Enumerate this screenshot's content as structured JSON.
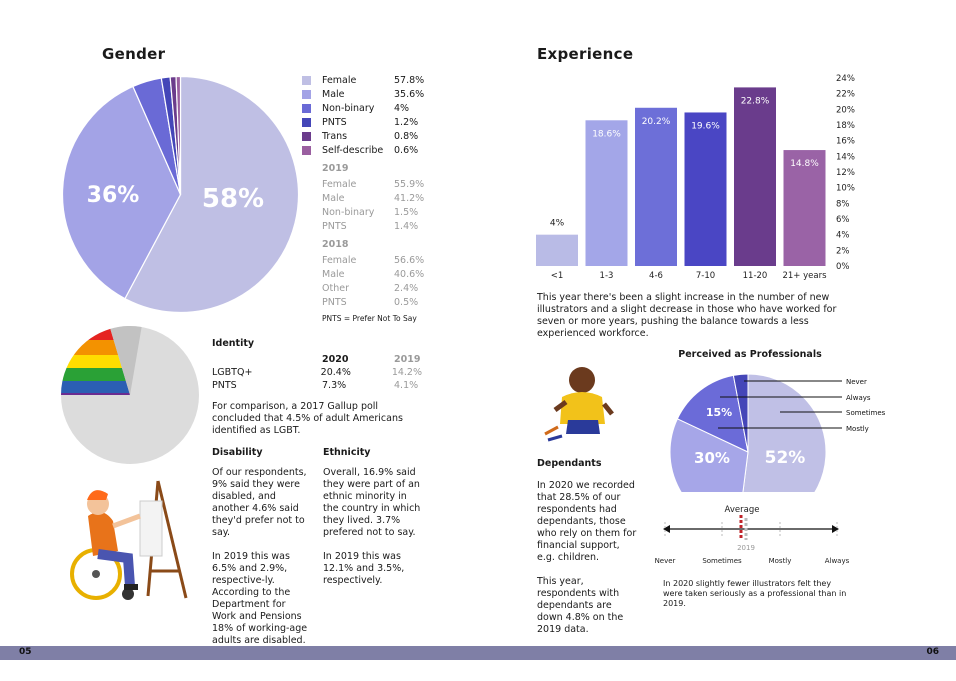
{
  "gender": {
    "title": "Gender",
    "pie_labels": {
      "big": "58%",
      "second": "36%"
    },
    "legend_2020": [
      {
        "label": "Female",
        "value": "57.8%",
        "color": "#bfbfe4"
      },
      {
        "label": "Male",
        "value": "35.6%",
        "color": "#a3a3e6"
      },
      {
        "label": "Non-binary",
        "value": "4%",
        "color": "#6a6ad6"
      },
      {
        "label": "PNTS",
        "value": "1.2%",
        "color": "#4446b8"
      },
      {
        "label": "Trans",
        "value": "0.8%",
        "color": "#6b3c8c"
      },
      {
        "label": "Self-describe",
        "value": "0.6%",
        "color": "#9a5fa0"
      }
    ],
    "y2019": {
      "year": "2019",
      "rows": [
        {
          "label": "Female",
          "value": "55.9%"
        },
        {
          "label": "Male",
          "value": "41.2%"
        },
        {
          "label": "Non-binary",
          "value": "1.5%"
        },
        {
          "label": "PNTS",
          "value": "1.4%"
        }
      ]
    },
    "y2018": {
      "year": "2018",
      "rows": [
        {
          "label": "Female",
          "value": "56.6%"
        },
        {
          "label": "Male",
          "value": "40.6%"
        },
        {
          "label": "Other",
          "value": "2.4%"
        },
        {
          "label": "PNTS",
          "value": "0.5%"
        }
      ]
    },
    "footnote": "PNTS = Prefer Not To Say"
  },
  "identity": {
    "title": "Identity",
    "col_2020": "2020",
    "col_2019": "2019",
    "rows": [
      {
        "label": "LGBTQ+",
        "v2020": "20.4%",
        "v2019": "14.2%"
      },
      {
        "label": "PNTS",
        "v2020": "7.3%",
        "v2019": "4.1%"
      }
    ],
    "note": "For comparison, a 2017 Gallup poll concluded that 4.5% of adult Americans identified as LGBT."
  },
  "disability": {
    "title": "Disability",
    "p1": "Of our respondents, 9% said they were disabled, and another 4.6% said they'd prefer not to say.",
    "p2": "In 2019 this was 6.5% and 2.9%, respective-ly. According to the Department for Work and Pensions 18% of working-age adults are disabled."
  },
  "ethnicity": {
    "title": "Ethnicity",
    "p1": "Overall, 16.9% said they were part of an ethnic minority in the country in which they lived. 3.7% prefered not to say.",
    "p2": "In 2019 this was 12.1% and 3.5%, respectively."
  },
  "experience": {
    "title": "Experience",
    "caption": "This year there's been a slight increase in the number of new illustrators and a slight decrease in those who have worked for seven or more years, pushing the balance towards a less experienced workforce."
  },
  "chart_data": [
    {
      "type": "bar",
      "title": "Experience",
      "categories": [
        "<1",
        "1-3",
        "4-6",
        "7-10",
        "11-20",
        "21+ years"
      ],
      "values": [
        4,
        18.6,
        20.2,
        19.6,
        22.8,
        14.8
      ],
      "data_labels": [
        "4%",
        "18.6%",
        "20.2%",
        "19.6%",
        "22.8%",
        "14.8%"
      ],
      "colors": [
        "#b9bbe6",
        "#a3a6e8",
        "#6d6fd8",
        "#4a46c4",
        "#6a3c8c",
        "#9a63a6"
      ],
      "ylim": [
        0,
        24
      ],
      "yticks": [
        "0%",
        "2%",
        "4%",
        "6%",
        "8%",
        "10%",
        "12%",
        "14%",
        "16%",
        "18%",
        "20%",
        "22%",
        "24%"
      ],
      "grid": false
    },
    {
      "type": "pie",
      "title": "Perceived as Professionals",
      "slices": [
        {
          "name": "Mostly",
          "value": 52,
          "label": "52%",
          "color": "#c0c0e6"
        },
        {
          "name": "Sometimes",
          "value": 30,
          "label": "30%",
          "color": "#a6a6e8"
        },
        {
          "name": "Always",
          "value": 15,
          "label": "15%",
          "color": "#6b6bd8"
        },
        {
          "name": "Never",
          "value": 3,
          "label": "",
          "color": "#4546b8"
        }
      ],
      "legend_order": [
        "Never",
        "Always",
        "Sometimes",
        "Mostly"
      ]
    }
  ],
  "dependants": {
    "title": "Dependants",
    "p1": "In 2020 we recorded that 28.5% of our respondents had dependants, those who rely on them for financial support, e.g. children.",
    "p2": "This year, respondents with dependants are down 4.8% on the 2019 data."
  },
  "professional": {
    "title": "Perceived as Professionals",
    "scale_title": "Average",
    "scale_2019": "2019",
    "scale_labels": [
      "Never",
      "Sometimes",
      "Mostly",
      "Always"
    ],
    "caption": "In 2020 slightly fewer illustrators felt they were taken seriously as a professional than in 2019."
  },
  "footer": {
    "left_page": "05",
    "right_page": "06"
  }
}
